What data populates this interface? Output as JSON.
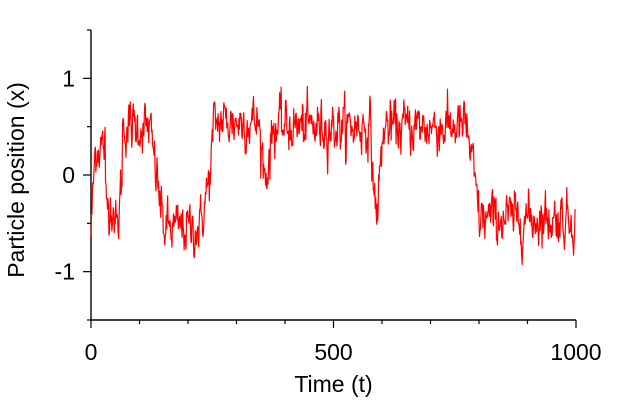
{
  "chart_data": {
    "type": "line",
    "title": "",
    "xlabel": "Time  (t)",
    "ylabel": "Particle position  (x)",
    "xlim": [
      0,
      1000
    ],
    "ylim": [
      -1.5,
      1.5
    ],
    "grid": false,
    "x_major_ticks": [
      0,
      500,
      1000
    ],
    "x_minor_ticks": [
      100,
      200,
      300,
      400,
      600,
      700,
      800,
      900
    ],
    "y_major_ticks": [
      -1,
      0,
      1
    ],
    "y_minor_ticks": [
      -1.5,
      -0.5,
      0.5,
      1.5
    ],
    "x_tick_labels": [
      "0",
      "500",
      "1000"
    ],
    "y_tick_labels": [
      "-1",
      "0",
      "1"
    ],
    "series": [
      {
        "color": "#ff0000",
        "segments": [
          {
            "start": 0,
            "end": 8,
            "from": -0.6,
            "to": 0.2
          },
          {
            "start": 8,
            "end": 30,
            "from": 0.2,
            "level": 0.3
          },
          {
            "start": 30,
            "end": 45,
            "level": -0.3
          },
          {
            "start": 45,
            "end": 55,
            "from": -0.3,
            "to": -0.6
          },
          {
            "start": 55,
            "end": 65,
            "from": -0.6,
            "to": 0.1
          },
          {
            "start": 65,
            "end": 120,
            "level": 0.5
          },
          {
            "start": 120,
            "end": 135,
            "from": 0.5,
            "to": 0.0
          },
          {
            "start": 135,
            "end": 150,
            "from": 0.0,
            "to": -0.55
          },
          {
            "start": 150,
            "end": 225,
            "level": -0.55
          },
          {
            "start": 225,
            "end": 245,
            "from": -0.55,
            "to": 0.0
          },
          {
            "start": 245,
            "end": 255,
            "from": 0.0,
            "to": 0.6
          },
          {
            "start": 255,
            "end": 345,
            "level": 0.55
          },
          {
            "start": 345,
            "end": 360,
            "from": 0.55,
            "to": -0.05
          },
          {
            "start": 360,
            "end": 378,
            "from": -0.05,
            "to": 0.55
          },
          {
            "start": 378,
            "end": 575,
            "level": 0.5
          },
          {
            "start": 575,
            "end": 588,
            "from": 0.5,
            "to": -0.45
          },
          {
            "start": 588,
            "end": 605,
            "from": -0.45,
            "to": 0.55
          },
          {
            "start": 605,
            "end": 775,
            "level": 0.5
          },
          {
            "start": 775,
            "end": 800,
            "from": 0.5,
            "to": -0.4
          },
          {
            "start": 800,
            "end": 1000,
            "level": -0.45
          }
        ],
        "noise_amplitude": 0.12,
        "point_spacing": 1
      }
    ]
  }
}
